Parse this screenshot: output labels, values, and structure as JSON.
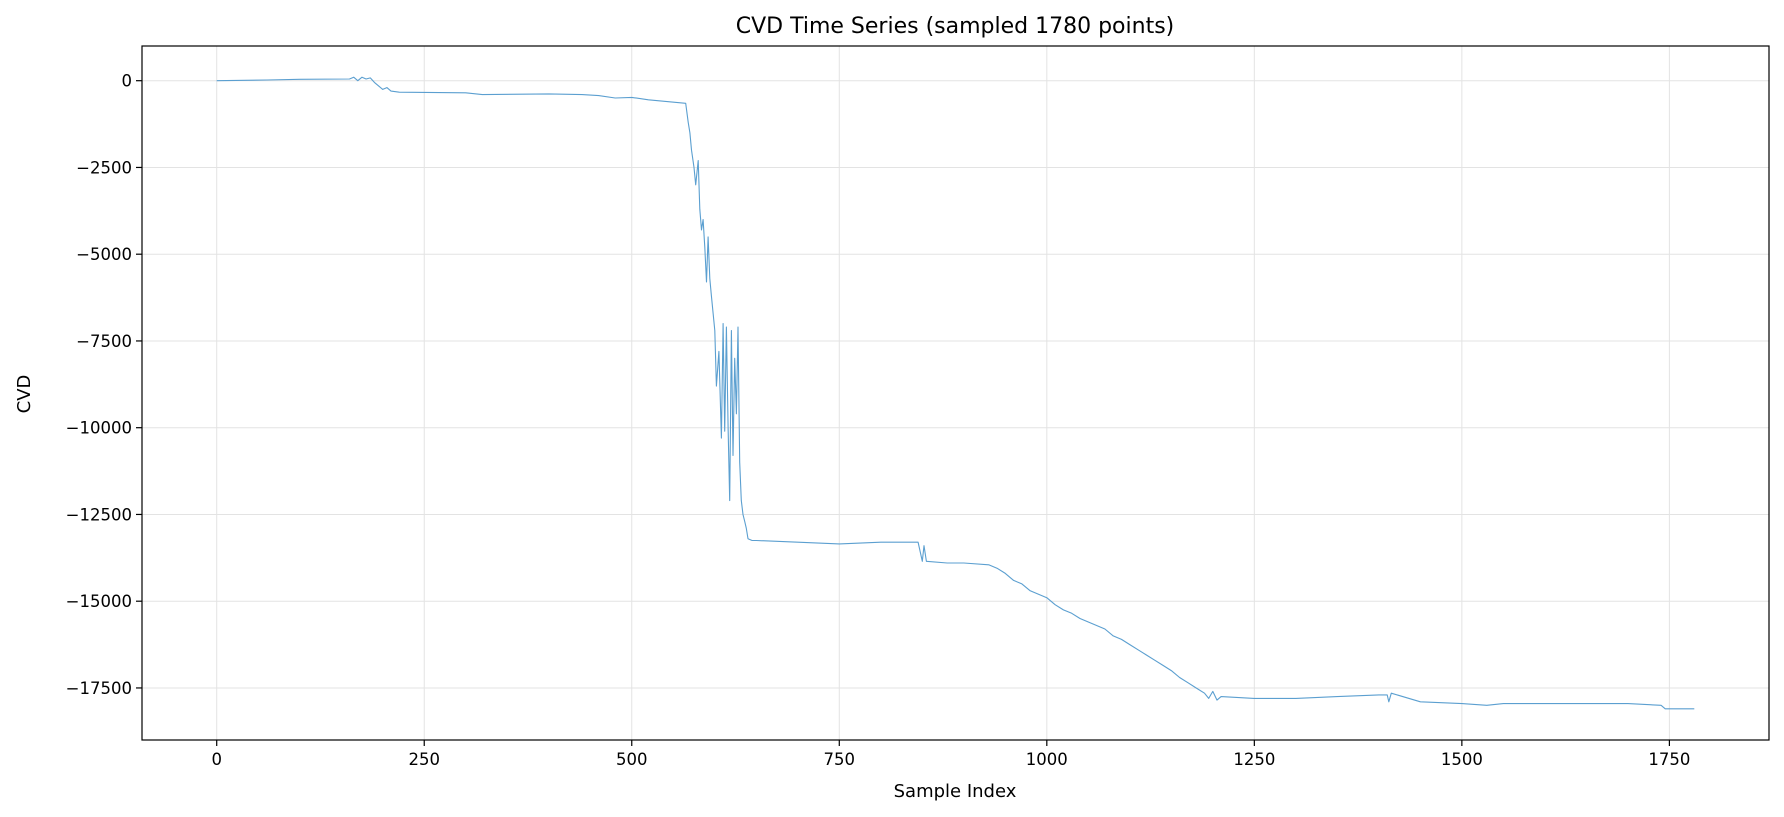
{
  "chart_data": {
    "type": "line",
    "title": "CVD Time Series (sampled 1780 points)",
    "xlabel": "Sample Index",
    "ylabel": "CVD",
    "xlim": [
      -90,
      1870
    ],
    "ylim": [
      -19000,
      1000
    ],
    "xticks": [
      0,
      250,
      500,
      750,
      1000,
      1250,
      1500,
      1750
    ],
    "yticks": [
      0,
      -2500,
      -5000,
      -7500,
      -10000,
      -12500,
      -15000,
      -17500
    ],
    "xtick_labels": [
      "0",
      "250",
      "500",
      "750",
      "1000",
      "1250",
      "1500",
      "1750"
    ],
    "ytick_labels": [
      "0",
      "−2500",
      "−5000",
      "−7500",
      "−10000",
      "−12500",
      "−15000",
      "−17500"
    ],
    "grid": true,
    "line_color": "#5b9fd0",
    "series": [
      {
        "x": [
          0,
          60,
          100,
          160,
          165,
          170,
          175,
          180,
          185,
          190,
          195,
          200,
          205,
          210,
          220,
          300,
          320,
          400,
          440,
          460,
          480,
          500,
          520,
          565,
          568,
          570,
          572,
          575,
          577,
          580,
          582,
          584,
          586,
          588,
          590,
          592,
          594,
          596,
          598,
          600,
          602,
          605,
          608,
          610,
          612,
          614,
          616,
          618,
          620,
          622,
          624,
          626,
          628,
          630,
          632,
          634,
          636,
          638,
          640,
          645,
          650,
          700,
          750,
          800,
          845,
          850,
          852,
          855,
          880,
          900,
          930,
          940,
          950,
          960,
          970,
          980,
          990,
          1000,
          1010,
          1020,
          1030,
          1040,
          1050,
          1060,
          1070,
          1080,
          1090,
          1100,
          1110,
          1120,
          1130,
          1140,
          1150,
          1160,
          1170,
          1180,
          1190,
          1195,
          1200,
          1205,
          1210,
          1250,
          1300,
          1350,
          1400,
          1410,
          1412,
          1415,
          1450,
          1500,
          1530,
          1550,
          1600,
          1650,
          1700,
          1740,
          1745,
          1780
        ],
        "y": [
          0,
          20,
          40,
          50,
          100,
          0,
          100,
          50,
          80,
          -50,
          -150,
          -250,
          -200,
          -300,
          -330,
          -350,
          -400,
          -380,
          -400,
          -430,
          -500,
          -480,
          -550,
          -650,
          -1200,
          -1500,
          -2000,
          -2500,
          -3000,
          -2300,
          -3700,
          -4300,
          -4000,
          -4800,
          -5800,
          -4500,
          -5700,
          -6200,
          -6700,
          -7200,
          -8800,
          -7800,
          -10300,
          -7000,
          -10100,
          -7100,
          -10000,
          -12100,
          -7200,
          -10800,
          -8000,
          -9600,
          -7100,
          -11000,
          -12100,
          -12500,
          -12700,
          -12900,
          -13200,
          -13250,
          -13250,
          -13300,
          -13350,
          -13300,
          -13300,
          -13850,
          -13400,
          -13850,
          -13900,
          -13900,
          -13950,
          -14050,
          -14200,
          -14400,
          -14500,
          -14700,
          -14800,
          -14900,
          -15100,
          -15250,
          -15350,
          -15500,
          -15600,
          -15700,
          -15800,
          -16000,
          -16100,
          -16250,
          -16400,
          -16550,
          -16700,
          -16850,
          -17000,
          -17200,
          -17350,
          -17500,
          -17650,
          -17800,
          -17600,
          -17850,
          -17750,
          -17800,
          -17800,
          -17750,
          -17700,
          -17700,
          -17900,
          -17650,
          -17900,
          -17950,
          -18000,
          -17950,
          -17950,
          -17950,
          -17950,
          -18000,
          -18100,
          -18100
        ]
      }
    ]
  }
}
